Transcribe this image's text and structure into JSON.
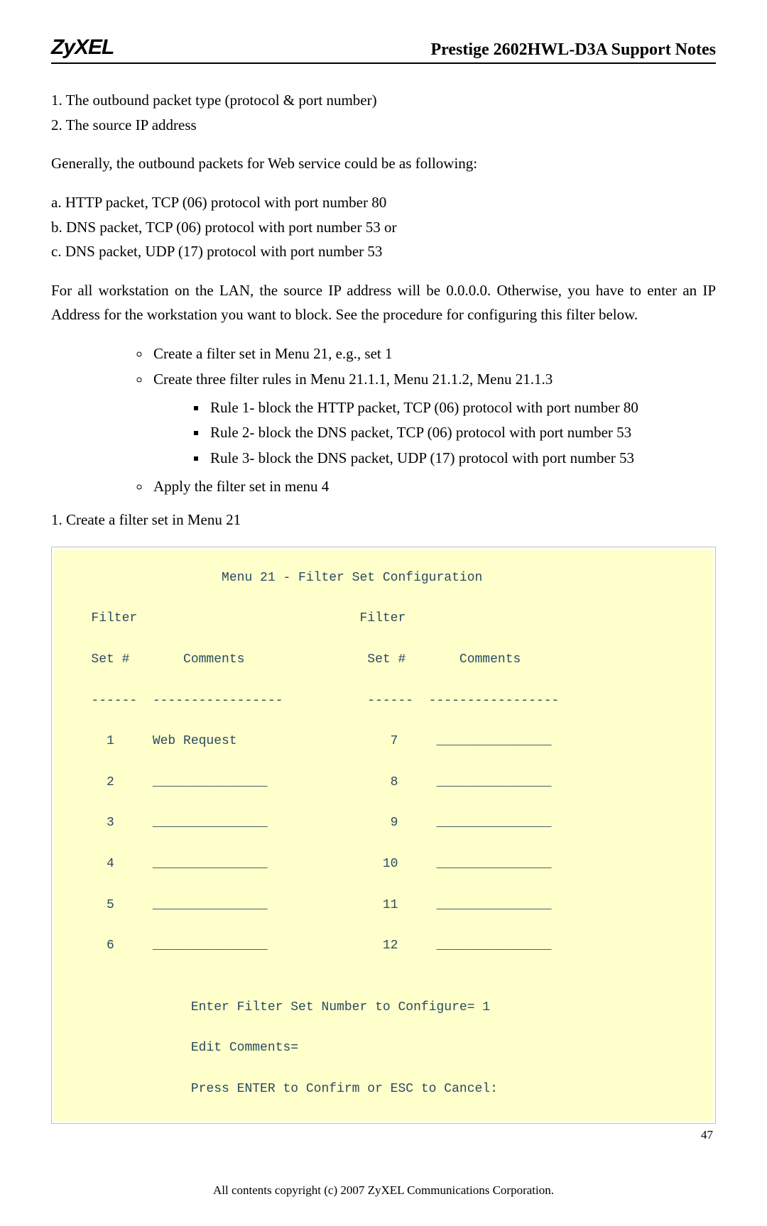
{
  "header": {
    "logo": "ZyXEL",
    "title": "Prestige 2602HWL-D3A Support Notes"
  },
  "body": {
    "line1": "1. The outbound packet type (protocol & port number)",
    "line2": "2. The source IP address",
    "para1": "Generally, the outbound packets for Web service could be as following:",
    "linea": "a. HTTP packet, TCP (06) protocol with port number 80",
    "lineb": "b. DNS packet, TCP (06) protocol with port number 53 or",
    "linec": "c. DNS packet, UDP (17) protocol with port number 53",
    "para2": "For all workstation on the LAN, the source IP address will be 0.0.0.0. Otherwise, you have to enter an IP Address for the workstation you want to block. See the procedure for configuring this filter below.",
    "bul1": "Create a filter set in Menu 21, e.g., set 1",
    "bul2": "Create three filter rules in Menu 21.1.1, Menu 21.1.2, Menu 21.1.3",
    "sub1": "Rule 1- block the HTTP packet, TCP (06) protocol with port number 80",
    "sub2": "Rule 2- block the DNS packet, TCP (06) protocol with port number 53",
    "sub3": "Rule 3- block the DNS packet, UDP (17) protocol with port number 53",
    "bul3": "Apply the filter set in menu 4",
    "step1": "1. Create a filter set in Menu 21"
  },
  "terminal": {
    "title": "                    Menu 21 - Filter Set Configuration",
    "hdr1": "   Filter                             Filter",
    "hdr2": "   Set #       Comments                Set #       Comments",
    "dash": "   ------  -----------------           ------  -----------------",
    "r1": "     1     Web Request                    7     _______________",
    "r2": "     2     _______________                8     _______________",
    "r3": "     3     _______________                9     _______________",
    "r4": "     4     _______________               10     _______________",
    "r5": "     5     _______________               11     _______________",
    "r6": "     6     _______________               12     _______________",
    "p1": "                Enter Filter Set Number to Configure= 1",
    "p2": "                Edit Comments=",
    "p3": "                Press ENTER to Confirm or ESC to Cancel:"
  },
  "footer": {
    "copyright": "All contents copyright (c) 2007 ZyXEL Communications Corporation.",
    "pagenum": "47"
  }
}
